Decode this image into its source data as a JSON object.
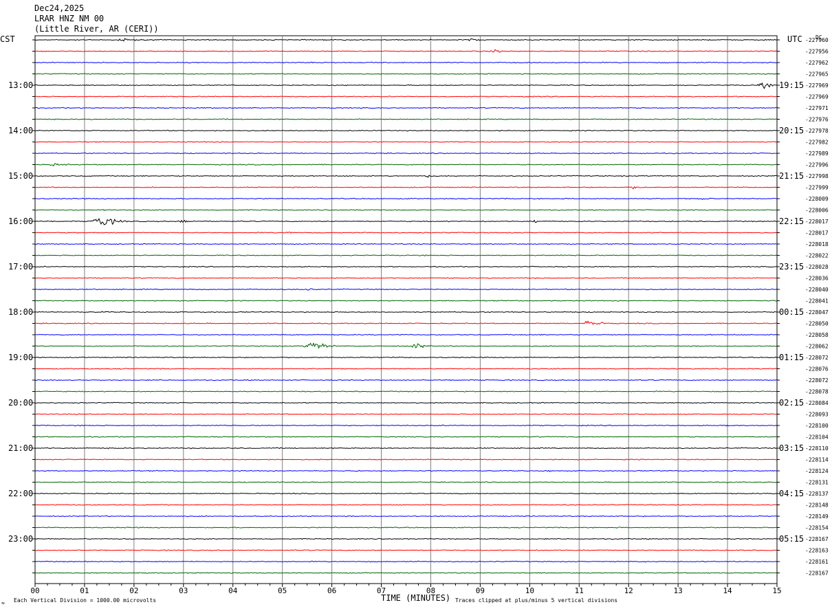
{
  "header": {
    "date": "Dec24,2025",
    "station": "LRAR HNZ NM 00",
    "location": "(Little River, AR (CERI))",
    "left_zone": "CST",
    "right_zone": "UTC",
    "dc_label": "DC"
  },
  "footer": {
    "xlabel": "TIME (MINUTES)",
    "scale_note": "Each Vertical Division = 1000.00 microvolts",
    "clip_note": "Traces clipped at plus/minus 5 vertical divisions",
    "corner_glyph": "≈"
  },
  "colors": {
    "cycle": [
      "#000000",
      "#ff0000",
      "#0000ff",
      "#006400"
    ],
    "grid": "#808080",
    "frame": "#000000"
  },
  "chart_data": {
    "type": "helicorder",
    "x_ticks": [
      "00",
      "01",
      "02",
      "03",
      "04",
      "05",
      "06",
      "07",
      "08",
      "09",
      "10",
      "11",
      "12",
      "13",
      "14",
      "15"
    ],
    "xlim": [
      0,
      15
    ],
    "rows_per_hour": 4,
    "left_hour_labels": [
      {
        "row": 4,
        "text": "13:00"
      },
      {
        "row": 8,
        "text": "14:00"
      },
      {
        "row": 12,
        "text": "15:00"
      },
      {
        "row": 16,
        "text": "16:00"
      },
      {
        "row": 20,
        "text": "17:00"
      },
      {
        "row": 24,
        "text": "18:00"
      },
      {
        "row": 28,
        "text": "19:00"
      },
      {
        "row": 32,
        "text": "20:00"
      },
      {
        "row": 36,
        "text": "21:00"
      },
      {
        "row": 40,
        "text": "22:00"
      },
      {
        "row": 44,
        "text": "23:00"
      }
    ],
    "right_hour_labels": [
      {
        "row": 4,
        "text": "19:15"
      },
      {
        "row": 8,
        "text": "20:15"
      },
      {
        "row": 12,
        "text": "21:15"
      },
      {
        "row": 16,
        "text": "22:15"
      },
      {
        "row": 20,
        "text": "23:15"
      },
      {
        "row": 24,
        "text": "00:15"
      },
      {
        "row": 28,
        "text": "01:15"
      },
      {
        "row": 32,
        "text": "02:15"
      },
      {
        "row": 36,
        "text": "03:15"
      },
      {
        "row": 40,
        "text": "04:15"
      },
      {
        "row": 44,
        "text": "05:15"
      }
    ],
    "dc_offsets": [
      "-227960",
      "-227956",
      "-227962",
      "-227965",
      "-227969",
      "-227969",
      "-227971",
      "-227976",
      "-227978",
      "-227982",
      "-227989",
      "-227996",
      "-227998",
      "-227999",
      "-228009",
      "-228006",
      "-228017",
      "-228017",
      "-228018",
      "-228022",
      "-228028",
      "-228036",
      "-228040",
      "-228041",
      "-228047",
      "-228050",
      "-228058",
      "-228062",
      "-228072",
      "-228076",
      "-228072",
      "-228078",
      "-228084",
      "-228093",
      "-228100",
      "-228104",
      "-228110",
      "-228114",
      "-228124",
      "-228131",
      "-228137",
      "-228148",
      "-228149",
      "-228154",
      "-228167",
      "-228163",
      "-228161",
      "-228167"
    ],
    "events": [
      {
        "row": 0,
        "minute": 1.8,
        "amp": 3,
        "dur": 1.0
      },
      {
        "row": 0,
        "minute": 8.8,
        "amp": 4,
        "dur": 0.5
      },
      {
        "row": 1,
        "minute": 9.3,
        "amp": 3,
        "dur": 0.9
      },
      {
        "row": 4,
        "minute": 14.7,
        "amp": 7,
        "dur": 0.5
      },
      {
        "row": 5,
        "minute": 1.7,
        "amp": 2,
        "dur": 0.5
      },
      {
        "row": 11,
        "minute": 0.4,
        "amp": 3,
        "dur": 0.9
      },
      {
        "row": 12,
        "minute": 7.9,
        "amp": 3,
        "dur": 0.6
      },
      {
        "row": 13,
        "minute": 12.1,
        "amp": 3,
        "dur": 0.8
      },
      {
        "row": 14,
        "minute": 13.5,
        "amp": 2.5,
        "dur": 0.7
      },
      {
        "row": 15,
        "minute": 1.4,
        "amp": 3,
        "dur": 0.4
      },
      {
        "row": 16,
        "minute": 1.3,
        "amp": 14,
        "dur": 0.8
      },
      {
        "row": 16,
        "minute": 3.0,
        "amp": 4,
        "dur": 0.6
      },
      {
        "row": 16,
        "minute": 10.1,
        "amp": 3.5,
        "dur": 0.5
      },
      {
        "row": 17,
        "minute": 5.1,
        "amp": 3,
        "dur": 0.6
      },
      {
        "row": 19,
        "minute": 10.6,
        "amp": 2,
        "dur": 0.4
      },
      {
        "row": 22,
        "minute": 5.5,
        "amp": 3,
        "dur": 0.6
      },
      {
        "row": 24,
        "minute": 1.4,
        "amp": 2,
        "dur": 0.4
      },
      {
        "row": 25,
        "minute": 11.2,
        "amp": 8,
        "dur": 0.6
      },
      {
        "row": 27,
        "minute": 5.6,
        "amp": 9,
        "dur": 0.9
      },
      {
        "row": 27,
        "minute": 7.7,
        "amp": 7,
        "dur": 0.5
      },
      {
        "row": 34,
        "minute": 14.0,
        "amp": 2,
        "dur": 0.3
      },
      {
        "row": 38,
        "minute": 6.5,
        "amp": 2,
        "dur": 0.4
      },
      {
        "row": 38,
        "minute": 10.4,
        "amp": 2.5,
        "dur": 0.3
      },
      {
        "row": 41,
        "minute": 0.8,
        "amp": 2.5,
        "dur": 0.3
      }
    ]
  }
}
